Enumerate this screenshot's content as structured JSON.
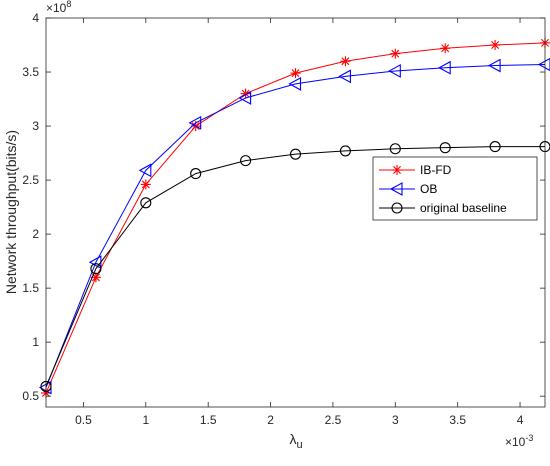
{
  "chart_data": {
    "type": "line",
    "ylabel": "Network throughput(bits/s)",
    "xlabel": "λ",
    "xlabel_subscript": "u",
    "x_exponent_base": "×10",
    "x_exponent": "-3",
    "y_exponent_base": "×10",
    "y_exponent": "8",
    "x": [
      0.2,
      0.6,
      1.0,
      1.4,
      1.8,
      2.2,
      2.6,
      3.0,
      3.4,
      3.8,
      4.2
    ],
    "xlim": [
      0.2,
      4.2
    ],
    "ylim": [
      0.4,
      4.0
    ],
    "xticks": [
      0.5,
      1,
      1.5,
      2,
      2.5,
      3,
      3.5,
      4
    ],
    "xtick_labels": [
      "0.5",
      "1",
      "1.5",
      "2",
      "2.5",
      "3",
      "3.5",
      "4"
    ],
    "yticks": [
      0.5,
      1,
      1.5,
      2,
      2.5,
      3,
      3.5,
      4
    ],
    "ytick_labels": [
      "0.5",
      "1",
      "1.5",
      "2",
      "2.5",
      "3",
      "3.5",
      "4"
    ],
    "grid": false,
    "legend_position": "center-right",
    "series": [
      {
        "name": "IB-FD",
        "color": "#ff0000",
        "marker": "asterisk",
        "values": [
          0.53,
          1.6,
          2.46,
          3.0,
          3.3,
          3.49,
          3.6,
          3.67,
          3.72,
          3.75,
          3.77
        ]
      },
      {
        "name": "OB",
        "color": "#0000ff",
        "marker": "triangle-left",
        "values": [
          0.58,
          1.74,
          2.59,
          3.03,
          3.26,
          3.39,
          3.46,
          3.51,
          3.54,
          3.56,
          3.57
        ]
      },
      {
        "name": "original baseline",
        "color": "#000000",
        "marker": "circle",
        "values": [
          0.59,
          1.68,
          2.29,
          2.56,
          2.68,
          2.74,
          2.77,
          2.79,
          2.8,
          2.81,
          2.81
        ]
      }
    ]
  }
}
